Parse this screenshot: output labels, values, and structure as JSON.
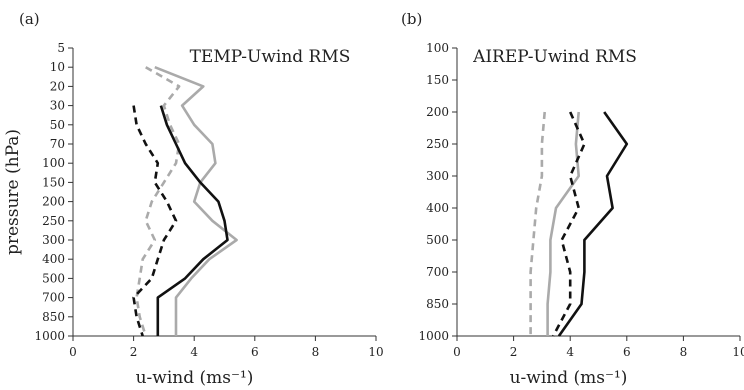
{
  "chart_data": [
    {
      "type": "line",
      "panel_label": "(a)",
      "title": "TEMP-Uwind RMS",
      "xlabel": "u-wind (ms⁻¹)",
      "ylabel": "pressure (hPa)",
      "xlim": [
        0,
        10
      ],
      "xticks": [
        "0",
        "2",
        "4",
        "6",
        "8",
        "10"
      ],
      "yticks": [
        "5",
        "10",
        "20",
        "30",
        "50",
        "70",
        "100",
        "150",
        "200",
        "250",
        "300",
        "400",
        "500",
        "700",
        "850",
        "1000"
      ],
      "y": [
        "5",
        "10",
        "20",
        "30",
        "50",
        "70",
        "100",
        "150",
        "200",
        "250",
        "300",
        "400",
        "500",
        "700",
        "850",
        "1000"
      ],
      "series": [
        {
          "style": "solid",
          "color": "#aaaaaa",
          "values": [
            null,
            2.7,
            4.3,
            3.6,
            4.0,
            4.6,
            4.7,
            4.2,
            4.0,
            4.6,
            5.4,
            4.5,
            3.9,
            3.4,
            3.4,
            3.4
          ]
        },
        {
          "style": "dashed",
          "color": "#aaaaaa",
          "values": [
            null,
            2.4,
            3.5,
            3.0,
            3.2,
            3.5,
            3.4,
            3.0,
            2.6,
            2.4,
            2.7,
            2.3,
            2.2,
            2.1,
            2.2,
            2.4
          ]
        },
        {
          "style": "solid",
          "color": "#111111",
          "values": [
            null,
            null,
            null,
            2.9,
            3.1,
            3.4,
            3.7,
            4.2,
            4.8,
            5.0,
            5.1,
            4.3,
            3.7,
            2.8,
            2.8,
            2.8
          ]
        },
        {
          "style": "dashed",
          "color": "#111111",
          "values": [
            null,
            null,
            null,
            2.0,
            2.1,
            2.4,
            2.8,
            2.7,
            3.1,
            3.4,
            3.0,
            2.8,
            2.6,
            2.0,
            2.1,
            2.3
          ]
        }
      ]
    },
    {
      "type": "line",
      "panel_label": "(b)",
      "title": "AIREP-Uwind RMS",
      "xlabel": "u-wind (ms⁻¹)",
      "ylabel": "",
      "xlim": [
        0,
        10
      ],
      "xticks": [
        "0",
        "2",
        "4",
        "6",
        "8",
        "10"
      ],
      "yticks": [
        "100",
        "150",
        "200",
        "250",
        "300",
        "400",
        "500",
        "700",
        "850",
        "1000"
      ],
      "y": [
        "100",
        "150",
        "200",
        "250",
        "300",
        "400",
        "500",
        "700",
        "850",
        "1000"
      ],
      "series": [
        {
          "style": "solid",
          "color": "#aaaaaa",
          "values": [
            null,
            null,
            4.3,
            4.2,
            4.3,
            3.5,
            3.3,
            3.3,
            3.2,
            3.2
          ]
        },
        {
          "style": "dashed",
          "color": "#aaaaaa",
          "values": [
            null,
            null,
            3.1,
            3.0,
            3.0,
            2.8,
            2.7,
            2.6,
            2.6,
            2.6
          ]
        },
        {
          "style": "solid",
          "color": "#111111",
          "values": [
            null,
            null,
            5.2,
            6.0,
            5.3,
            5.5,
            4.5,
            4.5,
            4.4,
            3.6
          ]
        },
        {
          "style": "dashed",
          "color": "#111111",
          "values": [
            null,
            null,
            4.0,
            4.5,
            4.0,
            4.3,
            3.7,
            4.0,
            4.0,
            3.4
          ]
        }
      ]
    }
  ]
}
